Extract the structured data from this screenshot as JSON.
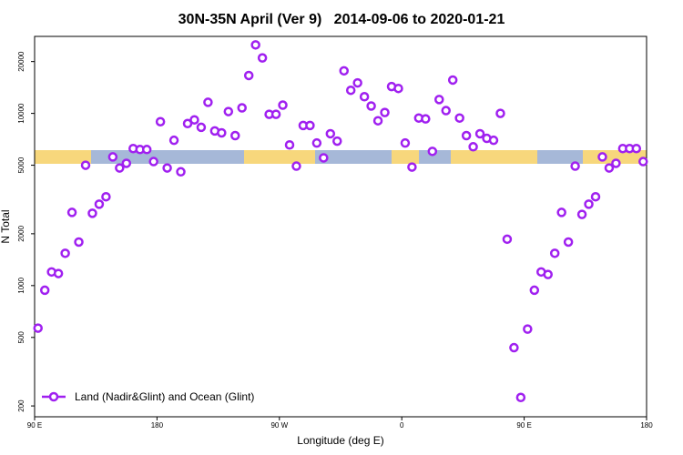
{
  "chart_data": {
    "type": "scatter",
    "title": "30N-35N April (Ver 9)   2014-09-06 to 2020-01-21",
    "xlabel": "Longitude (deg E)",
    "ylabel": "N Total",
    "log_y": true,
    "xlim": [
      90,
      540
    ],
    "ylim": [
      173,
      28000
    ],
    "xticks": [
      {
        "value": 90,
        "label": "90 E"
      },
      {
        "value": 180,
        "label": "180"
      },
      {
        "value": 270,
        "label": "90 W"
      },
      {
        "value": 360,
        "label": "0"
      },
      {
        "value": 450,
        "label": "90 E"
      },
      {
        "value": 540,
        "label": "180"
      }
    ],
    "yticks": [
      200,
      500,
      1000,
      2000,
      5000,
      10000,
      20000
    ],
    "legend": "bottom-left",
    "series": [
      {
        "name": "Land (Nadir&Glint) and Ocean (Glint)",
        "color": "#a020f0",
        "x": [
          92.5,
          97.5,
          102.5,
          107.5,
          112.5,
          117.5,
          122.5,
          127.5,
          132.5,
          137.5,
          142.5,
          147.5,
          152.5,
          157.5,
          162.5,
          167.5,
          172.5,
          177.5,
          182.5,
          187.5,
          192.5,
          197.5,
          202.5,
          207.5,
          212.5,
          217.5,
          222.5,
          227.5,
          232.5,
          237.5,
          242.5,
          247.5,
          252.5,
          257.5,
          262.5,
          267.5,
          272.5,
          277.5,
          282.5,
          287.5,
          292.5,
          297.5,
          302.5,
          307.5,
          312.5,
          317.5,
          322.5,
          327.5,
          332.5,
          337.5,
          342.5,
          347.5,
          352.5,
          357.5,
          362.5,
          367.5,
          372.5,
          377.5,
          382.5,
          387.5,
          392.5,
          397.5,
          402.5,
          407.5,
          412.5,
          417.5,
          422.5,
          427.5,
          432.5,
          437.5,
          442.5,
          447.5,
          452.5,
          457.5,
          462.5,
          467.5,
          472.5,
          477.5,
          482.5,
          487.5,
          492.5,
          497.5,
          502.5,
          507.5,
          512.5,
          517.5,
          522.5,
          527.5,
          532.5,
          537.5
        ],
        "values": [
          566,
          940,
          1200,
          1175,
          1540,
          2660,
          1790,
          5000,
          2630,
          2970,
          3280,
          5590,
          4820,
          5130,
          6250,
          6170,
          6170,
          5250,
          8950,
          4820,
          6980,
          4580,
          8730,
          9170,
          8300,
          11600,
          7910,
          7710,
          10250,
          7430,
          10770,
          16600,
          25000,
          21000,
          9880,
          9880,
          11170,
          6560,
          4940,
          8510,
          8510,
          6730,
          5520,
          7620,
          6900,
          17670,
          13620,
          15040,
          12500,
          11040,
          9060,
          10120,
          14320,
          13960,
          6730,
          4880,
          9400,
          9290,
          6020,
          12040,
          10380,
          15620,
          9400,
          7430,
          6400,
          7620,
          7160,
          6980,
          10000,
          1860,
          436,
          224,
          559,
          940,
          1200,
          1160,
          1540,
          2660,
          1790,
          4940,
          2590,
          2970,
          3280,
          5590,
          4820,
          5130,
          6250,
          6250,
          6250,
          5250
        ]
      }
    ]
  }
}
